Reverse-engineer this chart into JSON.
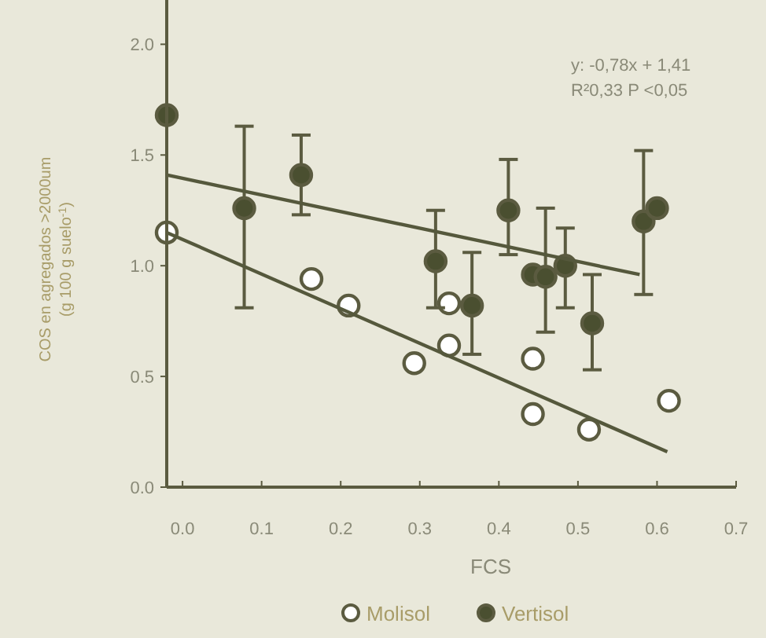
{
  "chart_data": {
    "type": "scatter",
    "xlabel": "FCS",
    "ylabel": "COS en agregados >2000um\n(g 100 g suelo$^{-1}$)",
    "xlim": [
      -0.02,
      0.7
    ],
    "xticks": [
      {
        "value": 0,
        "label": "0.0"
      },
      0.1,
      0.2,
      0.3,
      0.4,
      0.5,
      0.6,
      0.7
    ],
    "ylim": [
      0,
      2.2
    ],
    "yticks": [
      {
        "value": 0,
        "label": "0.0"
      },
      0.5,
      {
        "value": 1,
        "label": "1.0"
      },
      1.5,
      {
        "value": 2,
        "label": "2.0"
      }
    ],
    "legend": "bottom",
    "marker": "circle",
    "grid": false,
    "annotations": [
      "y: -0,78x + 1,41",
      "R²0,33 P <0,05"
    ],
    "series": [
      {
        "name": "Molisol",
        "color": "#ffffff",
        "x": [
          -0.02,
          0.163,
          0.21,
          0.293,
          0.337,
          0.337,
          0.443,
          0.443,
          0.514,
          0.615
        ],
        "values": [
          1.15,
          0.94,
          0.82,
          0.56,
          0.83,
          0.64,
          0.58,
          0.33,
          0.26,
          0.39
        ]
      },
      {
        "name": "Vertisol",
        "color": "#4a4f30",
        "x": [
          -0.02,
          0.078,
          0.15,
          0.32,
          0.366,
          0.412,
          0.443,
          0.459,
          0.484,
          0.518,
          0.583,
          0.6
        ],
        "values": [
          1.68,
          1.26,
          1.41,
          1.02,
          0.82,
          1.25,
          0.96,
          0.95,
          1.0,
          0.74,
          1.2,
          1.26
        ],
        "errors": [
          null,
          [
            0.81,
            1.63
          ],
          [
            1.23,
            1.59
          ],
          [
            0.81,
            1.25
          ],
          [
            0.6,
            1.06
          ],
          [
            1.05,
            1.48
          ],
          null,
          [
            0.7,
            1.26
          ],
          [
            0.81,
            1.17
          ],
          [
            0.53,
            0.96
          ],
          [
            0.87,
            1.52
          ],
          null
        ]
      },
      {
        "type": "line",
        "marker": "none",
        "color": "#55583c",
        "x": [
          -0.02,
          0.578
        ],
        "values": [
          1.41,
          0.96
        ]
      },
      {
        "type": "line",
        "marker": "none",
        "color": "#55583c",
        "x": [
          -0.02,
          0.613
        ],
        "values": [
          1.15,
          0.16
        ]
      }
    ]
  }
}
